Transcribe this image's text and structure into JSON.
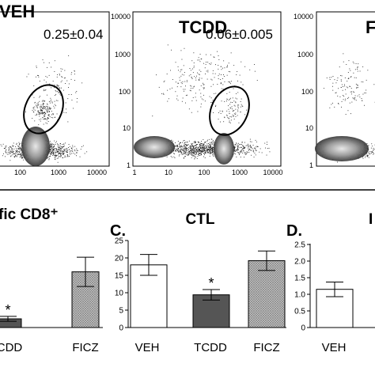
{
  "chart_data": [
    {
      "type": "scatter",
      "title": "VEH",
      "annotation": "0.25±0.04",
      "xticks": [
        "100",
        "1000",
        "10000"
      ],
      "yticks": []
    },
    {
      "type": "scatter",
      "title": "TCDD",
      "annotation": "0.06±0.005",
      "xticks": [
        "1",
        "10",
        "100",
        "1000",
        "10000"
      ],
      "yticks": [
        "1",
        "10",
        "100",
        "1000",
        "10000"
      ]
    },
    {
      "type": "scatter",
      "title": "F",
      "xticks": [],
      "yticks": [
        "1",
        "10",
        "100",
        "1000",
        "10000"
      ]
    },
    {
      "type": "bar",
      "title": "fic CD8⁺",
      "categories": [
        "CDD",
        "FICZ"
      ],
      "values": [
        2.5,
        16
      ],
      "errors": [
        0.7,
        4.2
      ],
      "significance": [
        "*",
        ""
      ],
      "ylim": [
        0,
        25
      ]
    },
    {
      "type": "bar",
      "panel": "C.",
      "title": "CTL",
      "categories": [
        "VEH",
        "TCDD",
        "FICZ"
      ],
      "values": [
        18,
        9.4,
        19.2
      ],
      "errors": [
        3,
        1.5,
        2.8
      ],
      "significance": [
        "",
        "*",
        ""
      ],
      "yticks": [
        "0",
        "5",
        "10",
        "15",
        "20",
        "25"
      ],
      "ylim": [
        0,
        25
      ]
    },
    {
      "type": "bar",
      "panel": "D.",
      "title": "I",
      "categories": [
        "VEH"
      ],
      "values": [
        1.15
      ],
      "errors": [
        0.22
      ],
      "yticks": [
        "0",
        "0.5",
        "1.0",
        "1.5",
        "2.0",
        "2.5"
      ],
      "ylim": [
        0,
        2.5
      ]
    }
  ],
  "colors": {
    "veh": "#ffffff",
    "tcdd": "#555555",
    "ficz": "#aaaaaa"
  }
}
